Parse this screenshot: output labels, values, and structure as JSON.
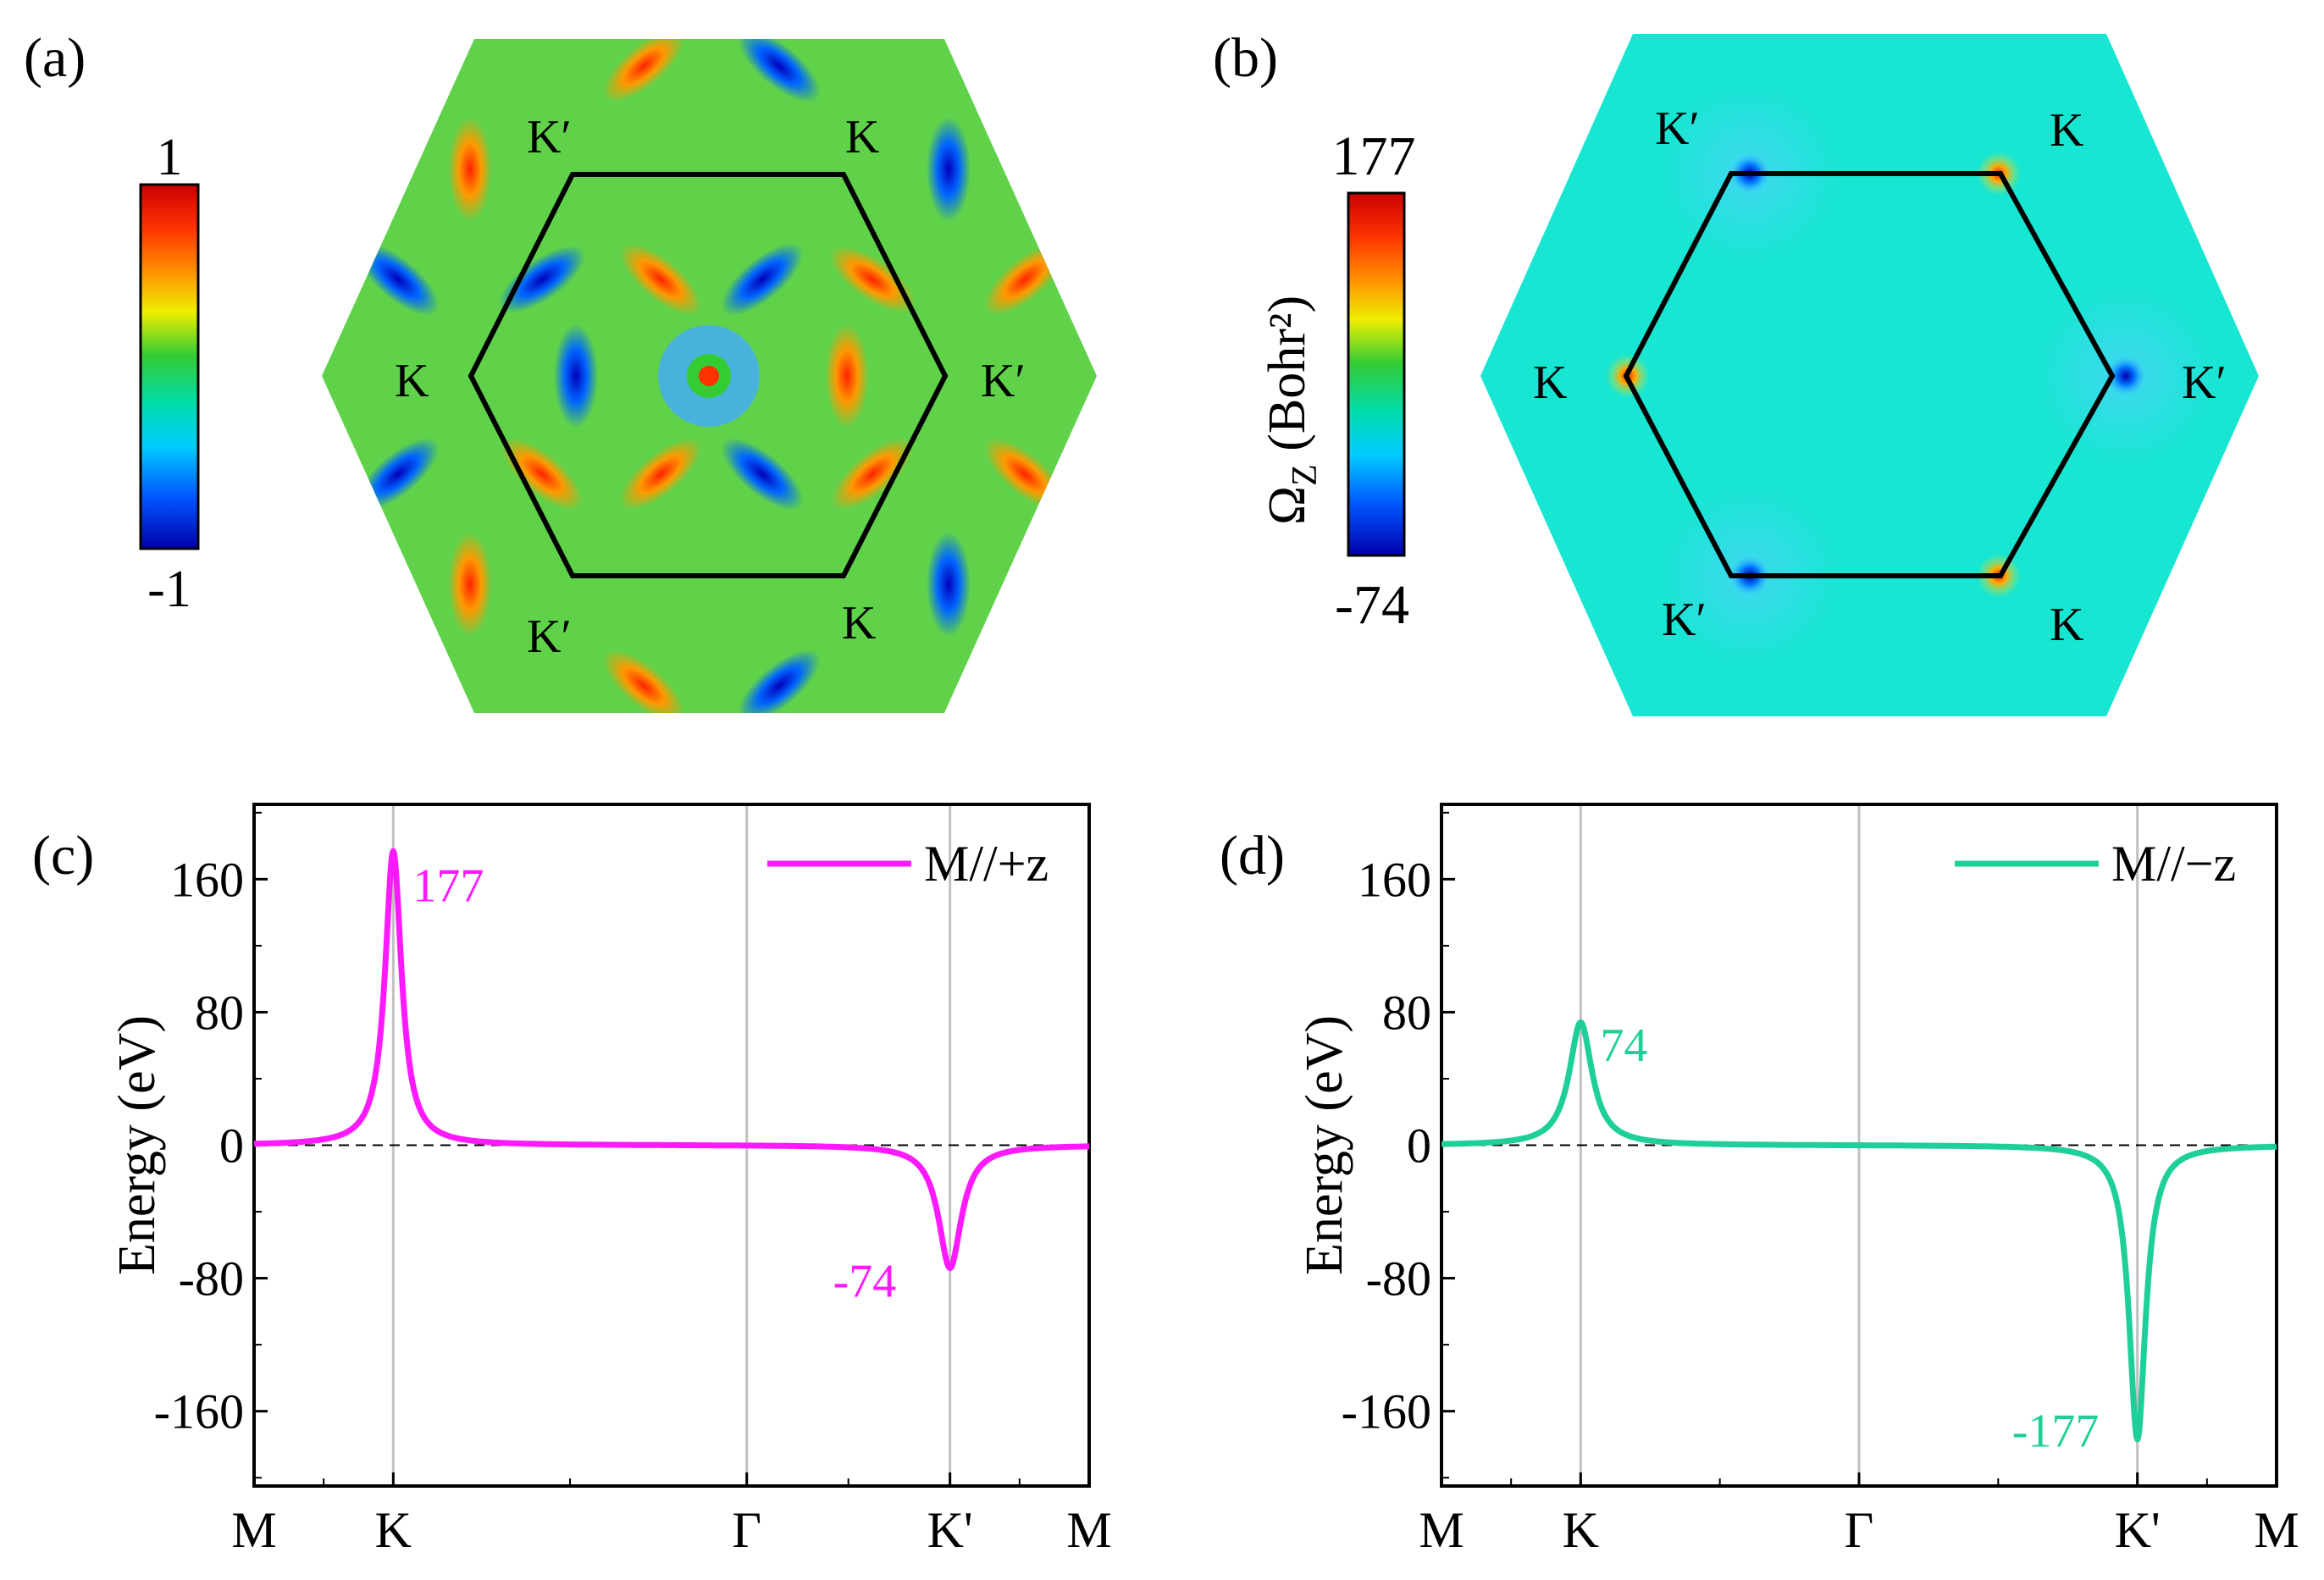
{
  "panels": {
    "a": {
      "label": "(a)",
      "colorbar": {
        "max": "1",
        "min": "-1"
      },
      "valley_labels": {
        "K_upper_right": "K",
        "K_left": "K",
        "K_lower_right": "K",
        "Kp_upper_left": "K′",
        "Kp_right": "K′",
        "Kp_lower_left": "K′"
      }
    },
    "b": {
      "label": "(b)",
      "colorbar": {
        "max": "177",
        "min": "-74",
        "title": "Ω",
        "title_sub": "Z",
        "title_unit": " (Bohr²)"
      },
      "valley_labels": {
        "K_upper_right": "K",
        "K_left": "K",
        "K_lower_right": "K",
        "Kp_upper_left": "K′",
        "Kp_right": "K′",
        "Kp_lower_left": "K′"
      }
    }
  },
  "colors": {
    "magenta": "#ff19ff",
    "teal": "#1fcf9a",
    "bz_background_b": "#17e6d2",
    "axis": "#000000",
    "grid": "#c0c0c0"
  },
  "chart_data": [
    {
      "id": "c",
      "panel_label": "(c)",
      "type": "line",
      "ylabel": "Energy (eV)",
      "ylim": [
        -205,
        205
      ],
      "yticks": [
        -160,
        -80,
        0,
        80,
        160
      ],
      "ytick_labels": [
        "-160",
        "-80",
        "0",
        "80",
        "160"
      ],
      "xlim": [
        0,
        3.0
      ],
      "xticks": [
        0,
        0.5,
        1.77,
        2.5,
        3.0
      ],
      "xtick_labels": [
        "M",
        "K",
        "Γ",
        "K'",
        "M"
      ],
      "series": [
        {
          "name": "M//+z",
          "color": "#ff19ff",
          "peaks": [
            {
              "x": 0.5,
              "amp": 177,
              "width": 0.036
            },
            {
              "x": 2.5,
              "amp": -74,
              "width": 0.05
            }
          ]
        }
      ],
      "annotations": [
        {
          "text": "177",
          "x": 0.57,
          "y": 158
        },
        {
          "text": "-74",
          "x": 2.08,
          "y": -80
        }
      ]
    },
    {
      "id": "d",
      "panel_label": "(d)",
      "type": "line",
      "ylabel": "Energy (eV)",
      "ylim": [
        -205,
        205
      ],
      "yticks": [
        -160,
        -80,
        0,
        80,
        160
      ],
      "ytick_labels": [
        "-160",
        "-80",
        "0",
        "80",
        "160"
      ],
      "xlim": [
        0,
        3.0
      ],
      "xticks": [
        0,
        0.5,
        1.5,
        2.5,
        3.0
      ],
      "xtick_labels": [
        "M",
        "K",
        "Γ",
        "K'",
        "M"
      ],
      "series": [
        {
          "name": "M//−z",
          "color": "#1fcf9a",
          "peaks": [
            {
              "x": 0.5,
              "amp": 74,
              "width": 0.05
            },
            {
              "x": 2.5,
              "amp": -177,
              "width": 0.036
            }
          ]
        }
      ],
      "annotations": [
        {
          "text": "74",
          "x": 0.57,
          "y": 62
        },
        {
          "text": "-177",
          "x": 2.05,
          "y": -170
        }
      ]
    }
  ]
}
